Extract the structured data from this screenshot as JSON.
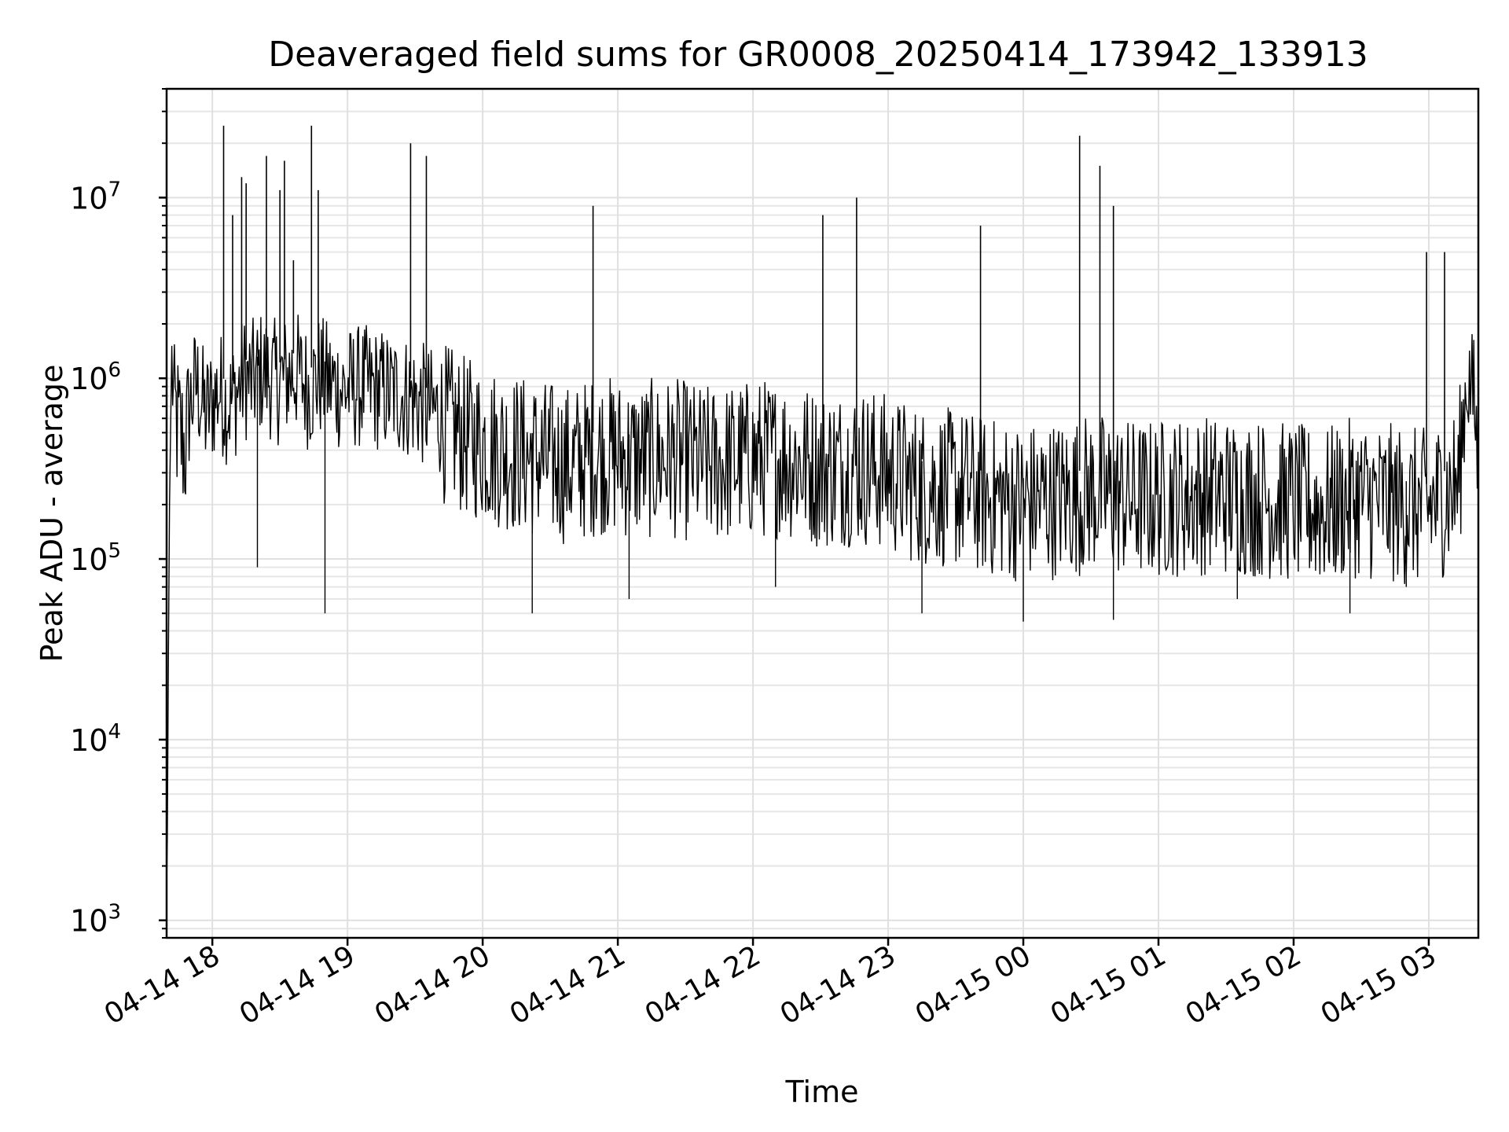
{
  "chart_data": {
    "type": "line",
    "title": "Deaveraged field sums for GR0008_20250414_173942_133913",
    "xlabel": "Time",
    "ylabel": "Peak ADU - average",
    "yscale": "log",
    "ylim": [
      800,
      40000000
    ],
    "xlim": [
      "2025-04-14T17:39:42",
      "2025-04-15T03:22:00"
    ],
    "grid": true,
    "grid_minor": true,
    "line_color": "#000000",
    "x_tick_labels": [
      "04-14 18",
      "04-14 19",
      "04-14 20",
      "04-14 21",
      "04-14 22",
      "04-14 23",
      "04-15 00",
      "04-15 01",
      "04-15 02",
      "04-15 03"
    ],
    "x_ticks": [
      "2025-04-14T18:00",
      "2025-04-14T19:00",
      "2025-04-14T20:00",
      "2025-04-14T21:00",
      "2025-04-14T22:00",
      "2025-04-14T23:00",
      "2025-04-15T00:00",
      "2025-04-15T01:00",
      "2025-04-15T02:00",
      "2025-04-15T03:00"
    ],
    "y_ticks": [
      {
        "base": "10",
        "exp": "3",
        "value": 1000
      },
      {
        "base": "10",
        "exp": "4",
        "value": 10000
      },
      {
        "base": "10",
        "exp": "5",
        "value": 100000
      },
      {
        "base": "10",
        "exp": "6",
        "value": 1000000
      },
      {
        "base": "10",
        "exp": "7",
        "value": 10000000
      }
    ],
    "series": [
      {
        "x": [
          "2025-04-14T17:39:42",
          "2025-04-14T17:40:00",
          "2025-04-14T17:40:30",
          "2025-04-14T17:41:00",
          "2025-04-14T17:42:00",
          "2025-04-14T17:43:00",
          "2025-04-14T17:45:00",
          "2025-04-14T17:48:00",
          "2025-04-14T17:50:00",
          "2025-04-14T17:53:00",
          "2025-04-14T17:57:00",
          "2025-04-14T18:03:00",
          "2025-04-14T18:07:00",
          "2025-04-14T18:10:00",
          "2025-04-14T18:14:00",
          "2025-04-14T18:17:00",
          "2025-04-14T18:22:00",
          "2025-04-14T18:29:00",
          "2025-04-14T18:33:00",
          "2025-04-14T18:37:00",
          "2025-04-14T18:43:00",
          "2025-04-14T18:47:00",
          "2025-04-14T18:52:00",
          "2025-04-14T18:58:00",
          "2025-04-14T19:06:00",
          "2025-04-14T19:14:00",
          "2025-04-14T19:28:00",
          "2025-04-14T19:34:00",
          "2025-04-14T19:41:00",
          "2025-04-14T19:52:00",
          "2025-04-14T20:09:00",
          "2025-04-14T20:21:00",
          "2025-04-14T20:39:00",
          "2025-04-14T20:52:00",
          "2025-04-14T21:09:00",
          "2025-04-14T21:23:00",
          "2025-04-14T21:39:00",
          "2025-04-14T21:56:00",
          "2025-04-14T22:13:00",
          "2025-04-14T22:31:00",
          "2025-04-14T22:46:00",
          "2025-04-14T22:57:00",
          "2025-04-14T23:13:00",
          "2025-04-14T23:34:00",
          "2025-04-14T23:44:00",
          "2025-04-15T00:00:00",
          "2025-04-15T00:21:00",
          "2025-04-15T00:31:00",
          "2025-04-15T00:42:00",
          "2025-04-15T00:53:00",
          "2025-04-15T01:06:00",
          "2025-04-15T01:22:00",
          "2025-04-15T01:41:00",
          "2025-04-15T01:58:00",
          "2025-04-15T02:13:00",
          "2025-04-15T02:27:00",
          "2025-04-15T02:40:00",
          "2025-04-15T02:59:00",
          "2025-04-15T03:06:00",
          "2025-04-15T03:13:00",
          "2025-04-15T03:17:00",
          "2025-04-15T03:20:00",
          "2025-04-15T03:22:00"
        ],
        "y": [
          1500,
          2800,
          30000,
          200000,
          1500000,
          900000,
          700000,
          550000,
          900000,
          1200000,
          800000,
          1100000,
          900000,
          1000000,
          1300000,
          1200000,
          1400000,
          1200000,
          1300000,
          1400000,
          1100000,
          1300000,
          1200000,
          1100000,
          1150000,
          1100000,
          1000000,
          900000,
          800000,
          650000,
          550000,
          500000,
          450000,
          520000,
          480000,
          500000,
          450000,
          480000,
          500000,
          430000,
          450000,
          420000,
          350000,
          330000,
          300000,
          280000,
          300000,
          320000,
          300000,
          290000,
          300000,
          310000,
          300000,
          280000,
          260000,
          300000,
          280000,
          260000,
          300000,
          350000,
          1300000,
          1000000,
          500000
        ]
      }
    ],
    "spikes": {
      "x": [
        "2025-04-14T18:05:00",
        "2025-04-14T18:09:00",
        "2025-04-14T18:13:00",
        "2025-04-14T18:15:00",
        "2025-04-14T18:24:00",
        "2025-04-14T18:30:00",
        "2025-04-14T18:32:00",
        "2025-04-14T18:36:00",
        "2025-04-14T18:44:00",
        "2025-04-14T18:47:00",
        "2025-04-14T19:28:00",
        "2025-04-14T19:35:00",
        "2025-04-14T20:49:00",
        "2025-04-14T22:31:00",
        "2025-04-14T22:46:00",
        "2025-04-14T23:41:00",
        "2025-04-15T00:25:00",
        "2025-04-15T00:34:00",
        "2025-04-15T00:40:00",
        "2025-04-15T02:59:00",
        "2025-04-15T03:07:00"
      ],
      "y": [
        25000000,
        8000000,
        13000000,
        12000000,
        17000000,
        11000000,
        16000000,
        4500000,
        25000000,
        11000000,
        20000000,
        17000000,
        9000000,
        8000000,
        10000000,
        7000000,
        22000000,
        15000000,
        9000000,
        5000000,
        5000000
      ]
    },
    "lows": {
      "x": [
        "2025-04-14T18:20:00",
        "2025-04-14T18:50:00",
        "2025-04-14T20:22:00",
        "2025-04-14T21:05:00",
        "2025-04-14T22:10:00",
        "2025-04-14T23:15:00",
        "2025-04-15T00:00:00",
        "2025-04-15T00:40:00",
        "2025-04-15T01:35:00",
        "2025-04-15T02:25:00",
        "2025-04-15T02:50:00"
      ],
      "y": [
        90000,
        50000,
        50000,
        60000,
        70000,
        50000,
        45000,
        46000,
        60000,
        50000,
        70000
      ]
    }
  }
}
